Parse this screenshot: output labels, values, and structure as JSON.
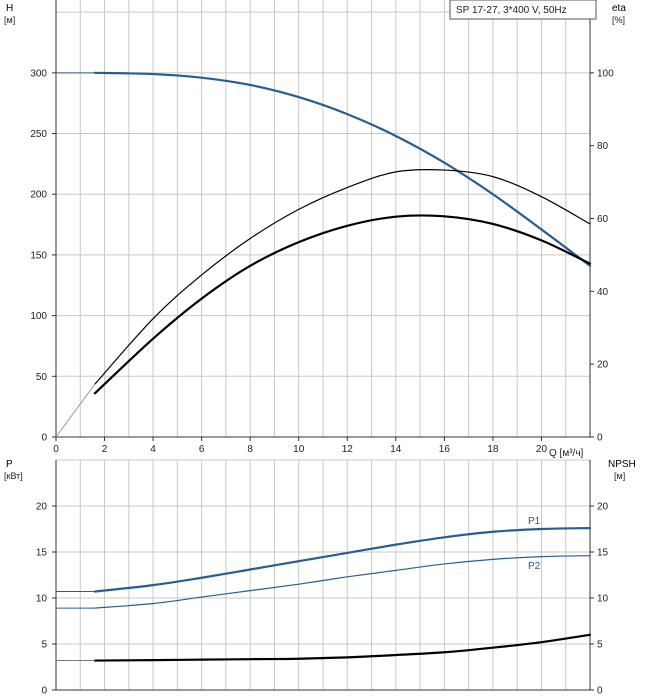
{
  "legend_box": "SP 17-27, 3*400 V, 50Hz",
  "colors": {
    "blue": "#2a5d8f",
    "black": "#000000",
    "grid": "#c8c8c8"
  },
  "chart_data": [
    {
      "type": "line",
      "panel": "top",
      "xlabel": "Q [м³/ч]",
      "ylabel": "H",
      "ylabel_unit": "[м]",
      "y2label": "eta",
      "y2label_unit": "[%]",
      "xlim": [
        0,
        22
      ],
      "ylim": [
        0,
        360
      ],
      "y2lim": [
        0,
        120
      ],
      "xticks": [
        0,
        2,
        4,
        6,
        8,
        10,
        12,
        14,
        16,
        18,
        20
      ],
      "yticks": [
        0,
        50,
        100,
        150,
        200,
        250,
        300
      ],
      "y2ticks": [
        0,
        20,
        40,
        60,
        80,
        100
      ],
      "grid": true,
      "series": [
        {
          "id": "H",
          "axis": "left",
          "color": "#2a5d8f",
          "width": 2.2,
          "x": [
            1.6,
            4,
            6,
            8,
            10,
            12,
            14,
            16,
            18,
            20,
            22
          ],
          "y": [
            300,
            299,
            296,
            290,
            280,
            266,
            248,
            226,
            200,
            171,
            141
          ]
        },
        {
          "id": "H-ext",
          "axis": "left",
          "color": "#2a5d8f",
          "width": 1,
          "x": [
            0,
            1.6
          ],
          "y": [
            300,
            300
          ]
        },
        {
          "id": "eta-thin",
          "axis": "right",
          "color": "#000000",
          "width": 1.2,
          "x": [
            1.6,
            4,
            6,
            8,
            10,
            12,
            14,
            16,
            18,
            20,
            22
          ],
          "y": [
            14.5,
            32.5,
            44.5,
            54.5,
            62.5,
            68.5,
            72.8,
            73.3,
            71.5,
            66.0,
            58.5
          ]
        },
        {
          "id": "eta-thick",
          "axis": "right",
          "color": "#000000",
          "width": 2.2,
          "x": [
            1.6,
            4,
            6,
            8,
            10,
            12,
            14,
            16,
            18,
            20,
            22
          ],
          "y": [
            12,
            27,
            38,
            47,
            53.5,
            58,
            60.5,
            60.6,
            58.5,
            54,
            47.6
          ]
        },
        {
          "id": "eta-ext",
          "axis": "right",
          "color": "#999999",
          "width": 1,
          "x": [
            0,
            1.6
          ],
          "y": [
            0,
            14.5
          ]
        }
      ]
    },
    {
      "type": "line",
      "panel": "bottom",
      "ylabel": "P",
      "ylabel_unit": "[кВт]",
      "y2label": "NPSH",
      "y2label_unit": "[м]",
      "xlim": [
        0,
        22
      ],
      "ylim": [
        0,
        25
      ],
      "y2lim": [
        0,
        25
      ],
      "yticks": [
        0,
        5,
        10,
        15,
        20
      ],
      "y2ticks": [
        0,
        5,
        10,
        15,
        20
      ],
      "grid": true,
      "series": [
        {
          "id": "P1",
          "name": "P1",
          "axis": "left",
          "color": "#2a5d8f",
          "width": 2.2,
          "x": [
            1.6,
            4,
            6,
            8,
            10,
            12,
            14,
            16,
            18,
            20,
            22
          ],
          "y": [
            10.7,
            11.4,
            12.2,
            13.1,
            14.0,
            14.9,
            15.8,
            16.6,
            17.2,
            17.5,
            17.6
          ]
        },
        {
          "id": "P1-ext",
          "axis": "left",
          "color": "#2a5d8f",
          "width": 1,
          "x": [
            0,
            1.6
          ],
          "y": [
            10.7,
            10.7
          ]
        },
        {
          "id": "P2",
          "name": "P2",
          "axis": "left",
          "color": "#2a5d8f",
          "width": 1.2,
          "x": [
            1.6,
            4,
            6,
            8,
            10,
            12,
            14,
            16,
            18,
            20,
            22
          ],
          "y": [
            8.9,
            9.4,
            10.1,
            10.8,
            11.5,
            12.3,
            13.0,
            13.7,
            14.2,
            14.5,
            14.6
          ]
        },
        {
          "id": "P2-ext",
          "axis": "left",
          "color": "#2a5d8f",
          "width": 1,
          "x": [
            0,
            1.6
          ],
          "y": [
            8.9,
            8.9
          ]
        },
        {
          "id": "NPSH",
          "axis": "right",
          "color": "#000000",
          "width": 2.2,
          "x": [
            1.6,
            4,
            6,
            8,
            10,
            12,
            14,
            16,
            18,
            20,
            22
          ],
          "y": [
            3.2,
            3.25,
            3.3,
            3.35,
            3.4,
            3.55,
            3.8,
            4.1,
            4.6,
            5.2,
            6.0
          ]
        },
        {
          "id": "NPSH-ext",
          "axis": "right",
          "color": "#777777",
          "width": 1,
          "x": [
            0,
            1.6
          ],
          "y": [
            3.2,
            3.2
          ]
        }
      ]
    }
  ]
}
